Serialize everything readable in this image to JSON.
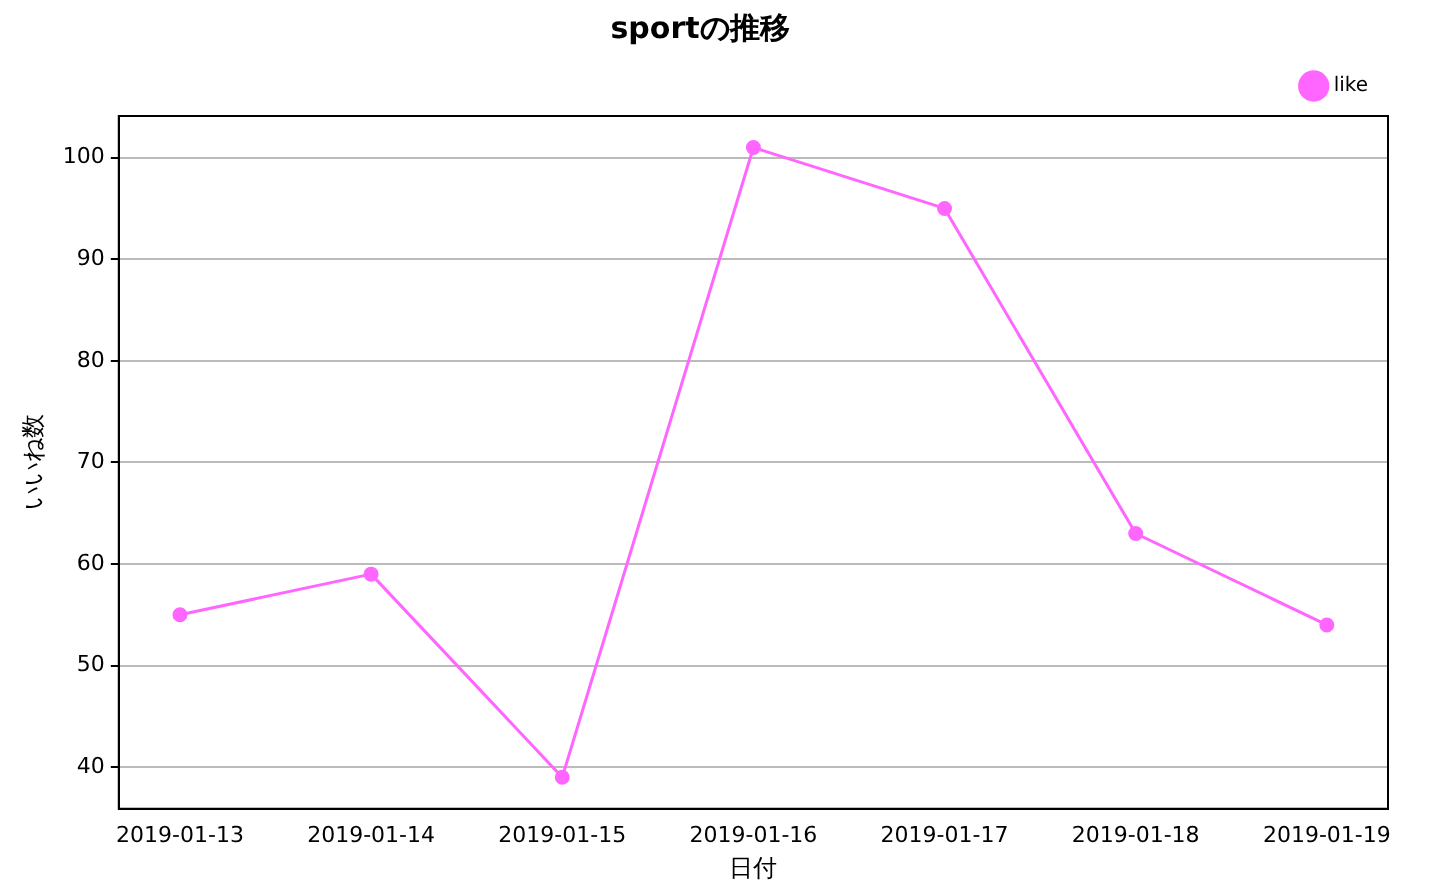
{
  "chart_data": {
    "type": "line",
    "title": "sportの推移",
    "xlabel": "日付",
    "ylabel": "いいね数",
    "categories": [
      "2019-01-13",
      "2019-01-14",
      "2019-01-15",
      "2019-01-16",
      "2019-01-17",
      "2019-01-18",
      "2019-01-19"
    ],
    "series": [
      {
        "name": "like",
        "color": "#ff66ff",
        "values": [
          55,
          59,
          39,
          101,
          95,
          63,
          54
        ]
      }
    ],
    "ylim": [
      35.9,
      104.1
    ],
    "yticks": [
      40,
      50,
      60,
      70,
      80,
      90,
      100
    ],
    "grid": "y",
    "legend": "top right",
    "marker": "circle",
    "line_style": "solid"
  }
}
